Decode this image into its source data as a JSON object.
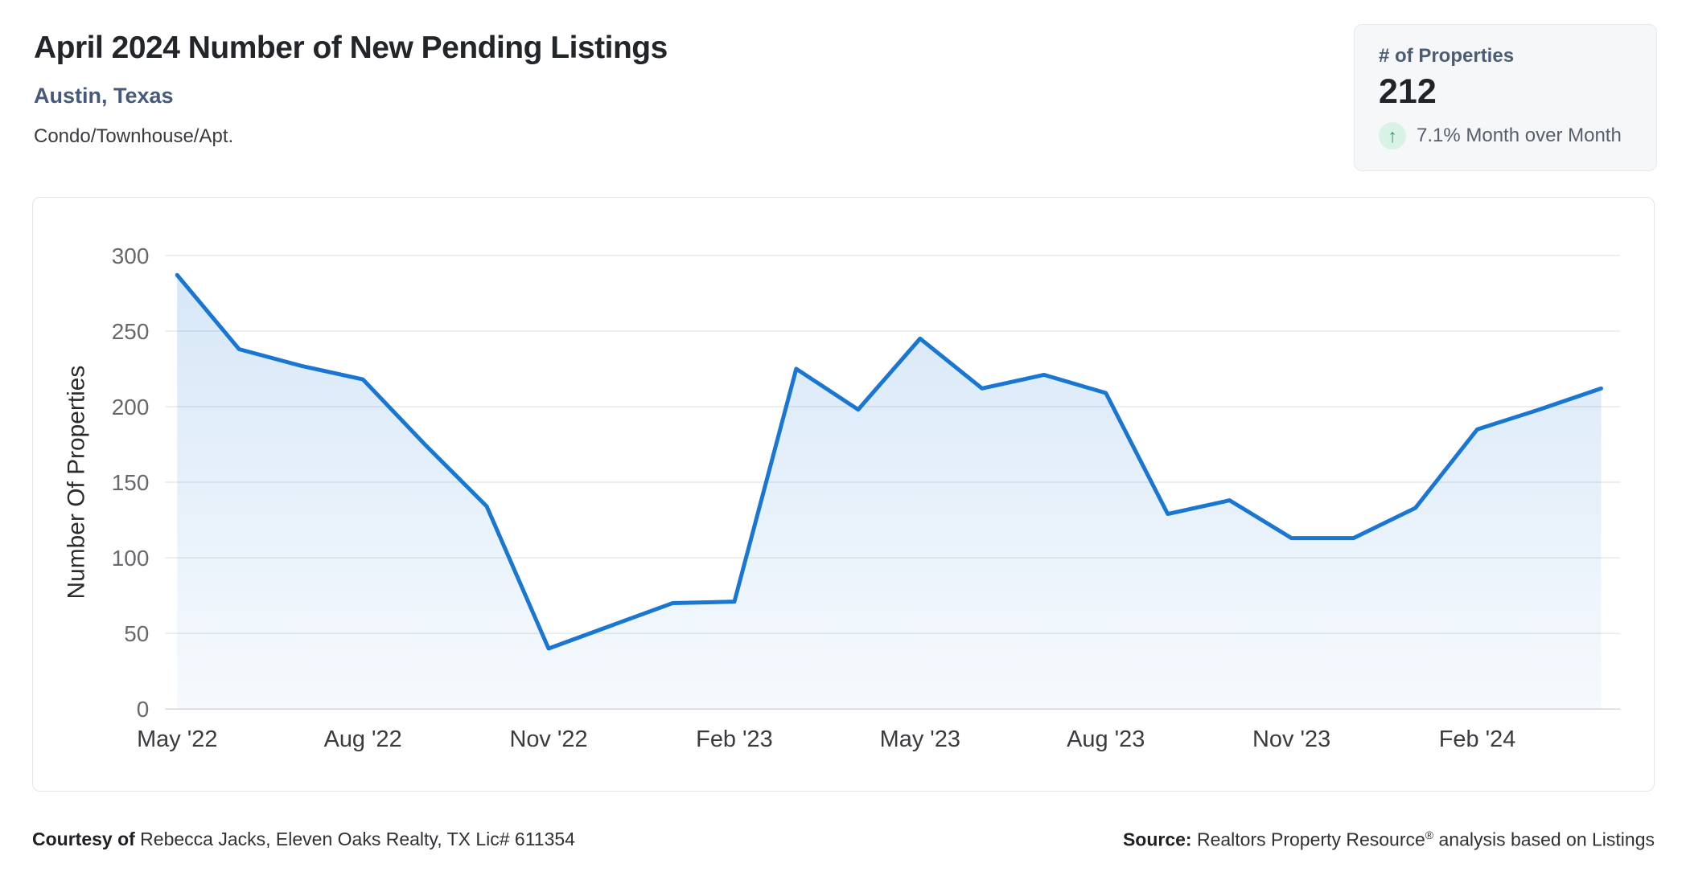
{
  "header": {
    "title": "April 2024 Number of New Pending Listings",
    "subtitle": "Austin, Texas",
    "property_type": "Condo/Townhouse/Apt."
  },
  "stat_card": {
    "label": "# of Properties",
    "value": "212",
    "trend": "up",
    "trend_arrow": "↑",
    "change_text": "7.1% Month over Month",
    "trend_color": "#27a36b",
    "trend_bg_color": "#d9f2e6"
  },
  "chart_data": {
    "type": "area",
    "title": "",
    "xlabel": "",
    "ylabel": "Number Of Properties",
    "x": [
      "May '22",
      "Jun '22",
      "Jul '22",
      "Aug '22",
      "Sep '22",
      "Oct '22",
      "Nov '22",
      "Dec '22",
      "Jan '23",
      "Feb '23",
      "Mar '23",
      "Apr '23",
      "May '23",
      "Jun '23",
      "Jul '23",
      "Aug '23",
      "Sep '23",
      "Oct '23",
      "Nov '23",
      "Dec '23",
      "Jan '24",
      "Feb '24",
      "Mar '24",
      "Apr '24"
    ],
    "values": [
      287,
      238,
      227,
      218,
      175,
      134,
      40,
      55,
      70,
      71,
      225,
      198,
      245,
      212,
      221,
      209,
      129,
      138,
      113,
      113,
      133,
      185,
      198,
      212
    ],
    "x_tick_indices": [
      0,
      3,
      6,
      9,
      12,
      15,
      18,
      21
    ],
    "x_tick_labels": [
      "May '22",
      "Aug '22",
      "Nov '22",
      "Feb '23",
      "May '23",
      "Aug '23",
      "Nov '23",
      "Feb '24"
    ],
    "y_ticks": [
      0,
      50,
      100,
      150,
      200,
      250,
      300
    ],
    "ylim": [
      0,
      300
    ],
    "grid": true,
    "legend": "none",
    "style": {
      "line_color": "#1976d2",
      "area_top_color": "rgba(25,118,210,0.18)",
      "area_bottom_color": "rgba(25,118,210,0.04)",
      "grid_color": "#e8e9ea",
      "zero_line_color": "#d3d6da",
      "y_tick_color": "#66686b",
      "x_tick_color": "#3a3b3e",
      "axis_title_color": "#2a2a2c"
    }
  },
  "footer": {
    "courtesy_bold": "Courtesy of",
    "courtesy_text": " Rebecca Jacks, Eleven Oaks Realty, TX Lic# 611354",
    "source_bold": "Source:",
    "source_text_pre": " Realtors Property Resource",
    "source_reg_mark": "®",
    "source_text_post": " analysis based on Listings"
  }
}
